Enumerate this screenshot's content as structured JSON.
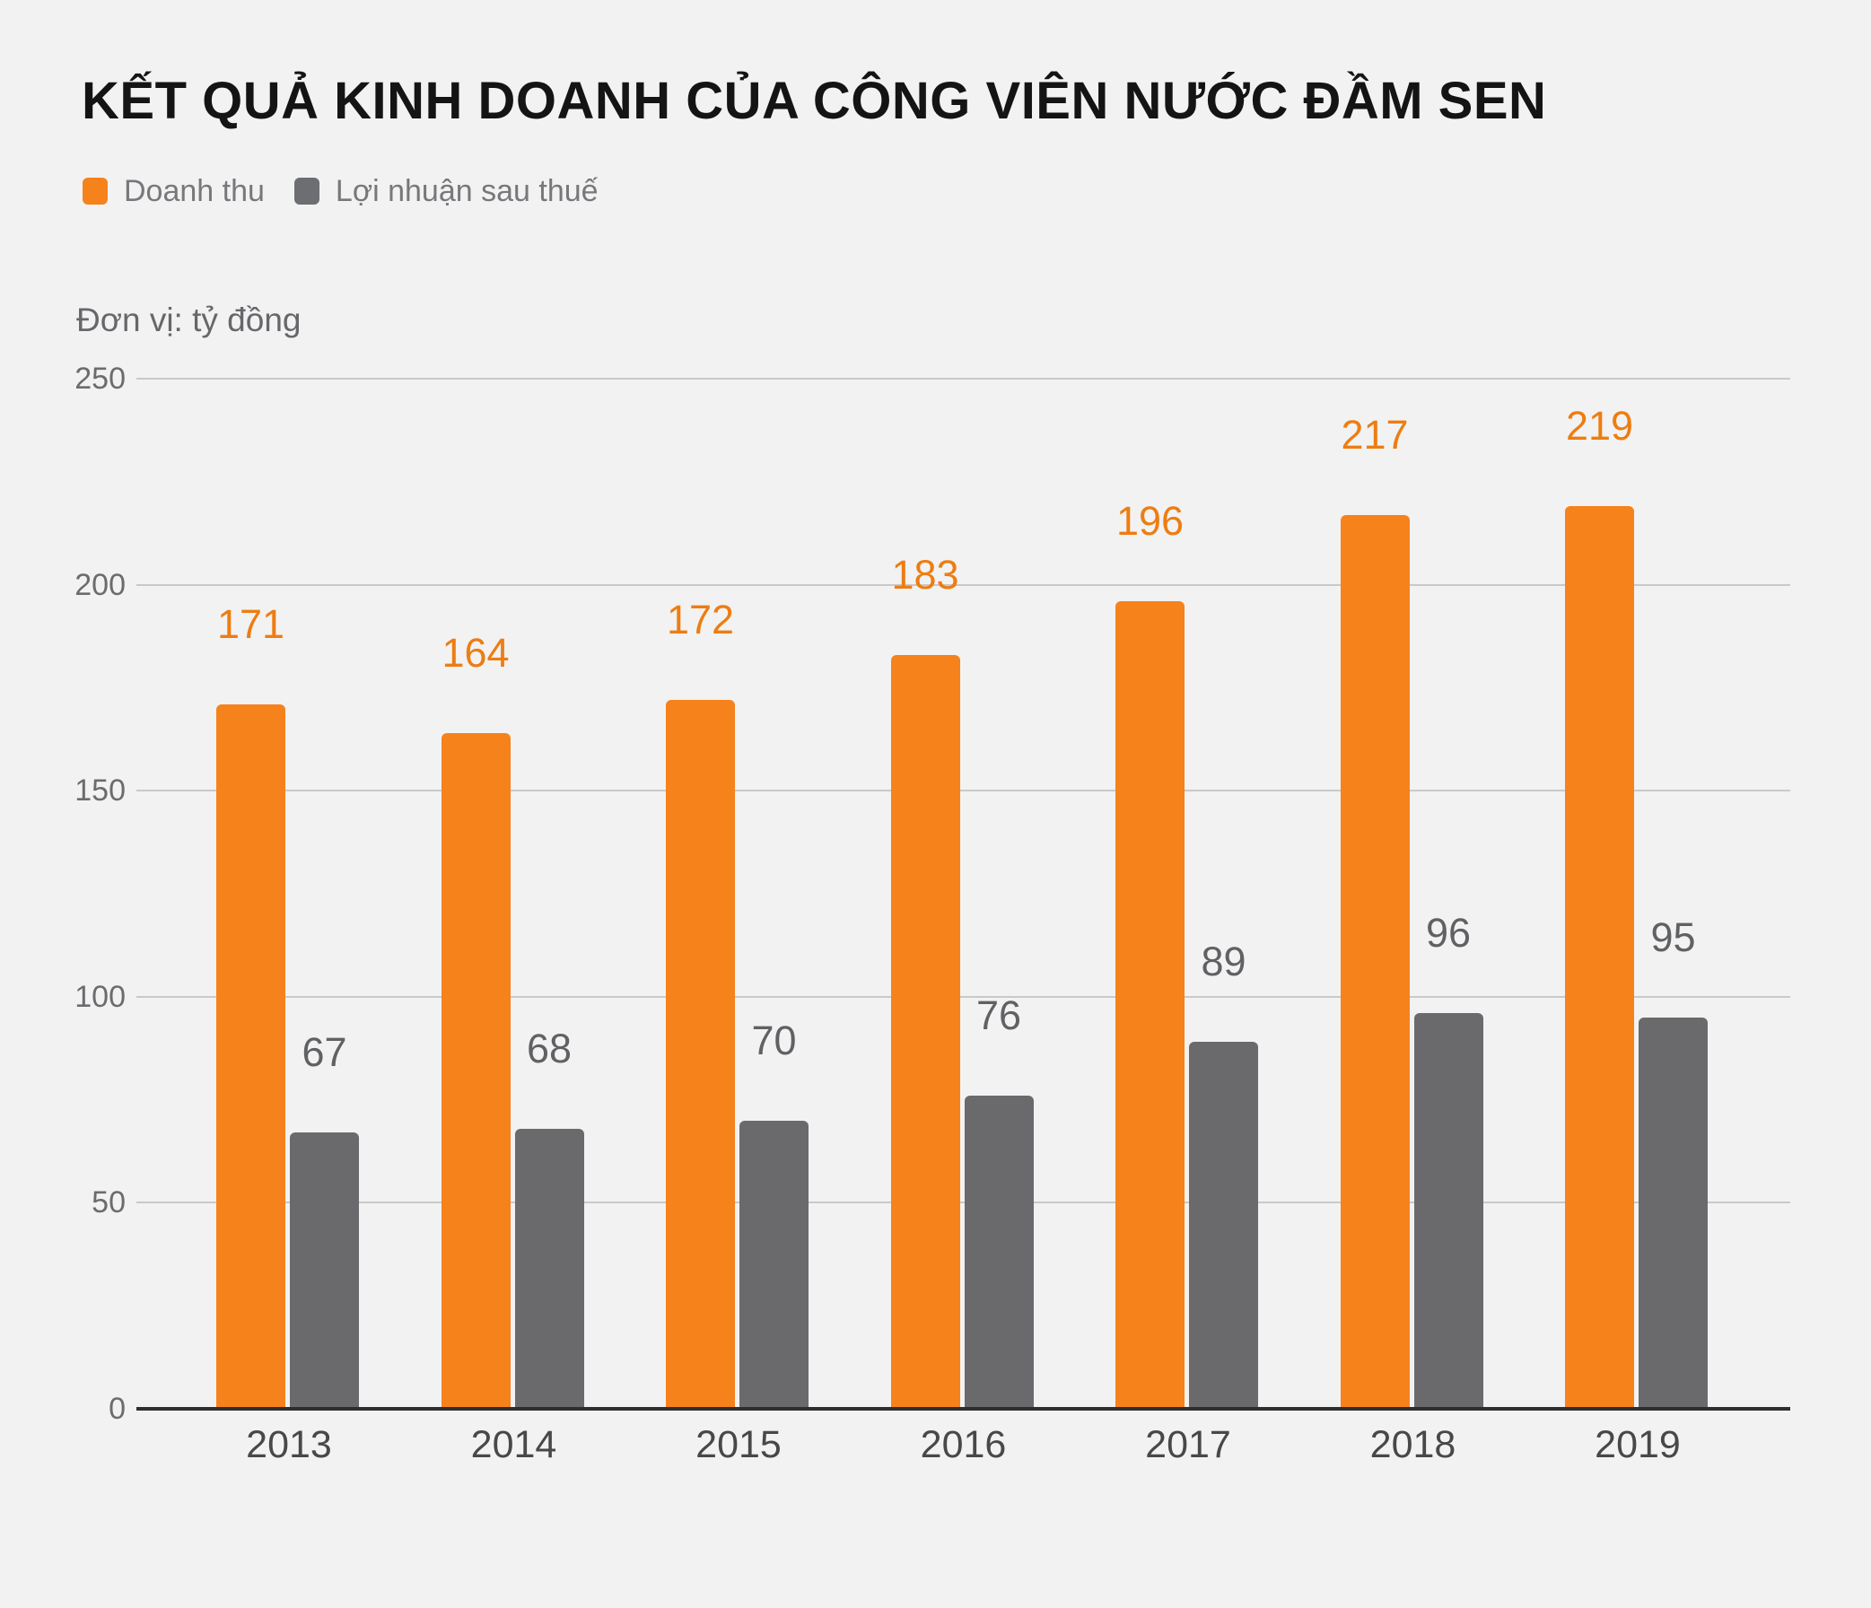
{
  "title": "KẾT QUẢ KINH DOANH CỦA CÔNG VIÊN NƯỚC ĐẦM SEN",
  "unit_label": "Đơn vị: tỷ đồng",
  "legend": [
    {
      "label": "Doanh thu",
      "color": "#f6821c"
    },
    {
      "label": "Lợi nhuận sau thuế",
      "color": "#6d6e71"
    }
  ],
  "colors": {
    "background": "#f2f2f2",
    "gridline": "#c9c9ca",
    "axis_baseline": "#2e2e30",
    "y_tick_label": "#6b6c6e",
    "x_tick_label": "#47484a",
    "title": "#141414",
    "revenue_orange": "#f6821c",
    "revenue_label_orange": "#ed7d12",
    "profit_gray": "#6a6a6d",
    "profit_label_gray": "#606164"
  },
  "chart_data": {
    "type": "bar",
    "title": "KẾT QUẢ KINH DOANH CỦA CÔNG VIÊN NƯỚC ĐẦM SEN",
    "subtitle": "Đơn vị: tỷ đồng",
    "categories": [
      "2013",
      "2014",
      "2015",
      "2016",
      "2017",
      "2018",
      "2019"
    ],
    "series": [
      {
        "name": "Doanh thu",
        "values": [
          171,
          164,
          172,
          183,
          196,
          217,
          219
        ],
        "color": "#f6821c",
        "label_color": "#ed7d12"
      },
      {
        "name": "Lợi nhuận sau thuế",
        "values": [
          67,
          68,
          70,
          76,
          89,
          96,
          95
        ],
        "color": "#6a6a6d",
        "label_color": "#606164"
      }
    ],
    "xlabel": "",
    "ylabel": "tỷ đồng",
    "ylim": [
      0,
      250
    ],
    "y_ticks": [
      250,
      200,
      150,
      100,
      50,
      0
    ],
    "grid": true,
    "legend_position": "top-left",
    "value_labels": true
  }
}
